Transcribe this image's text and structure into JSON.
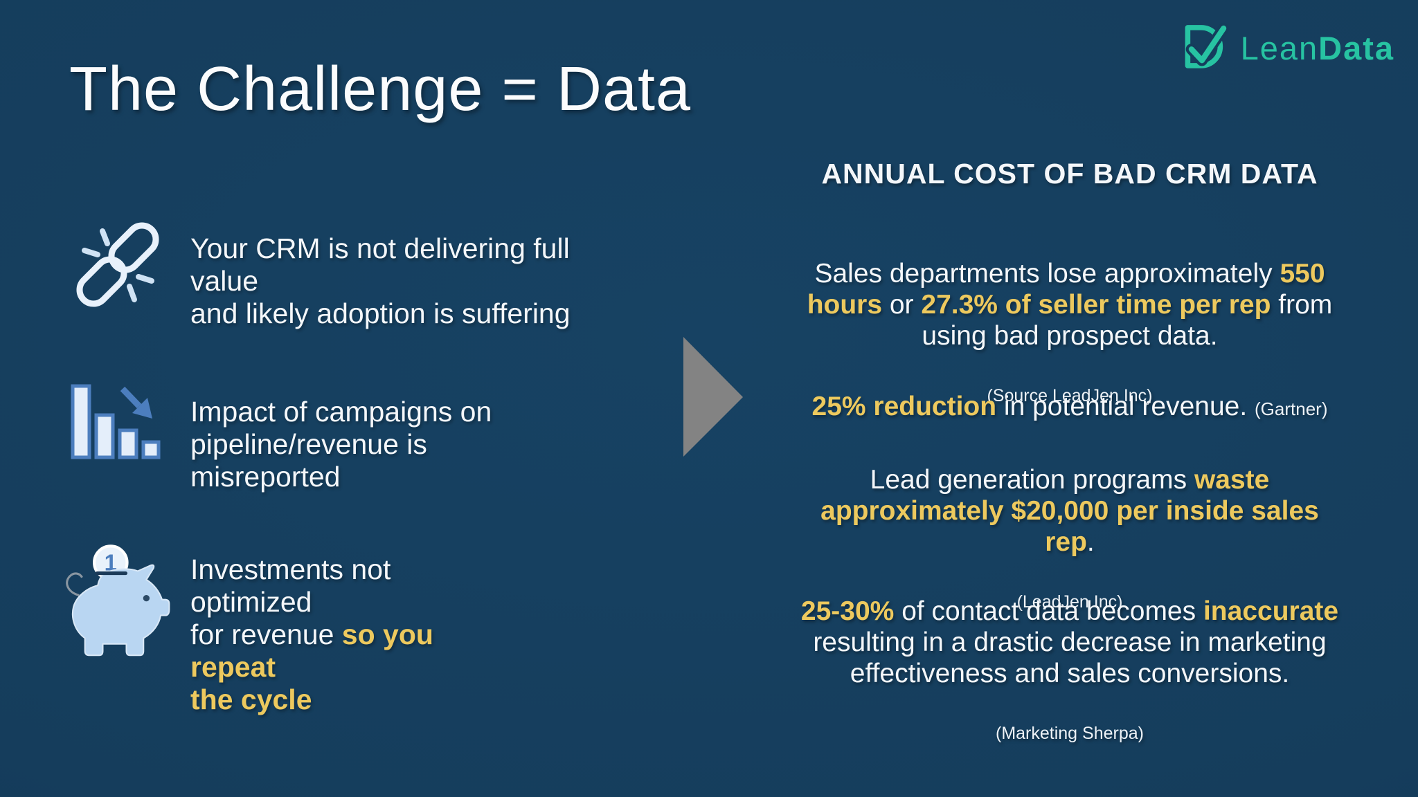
{
  "title": "The Challenge = Data",
  "logo": {
    "lean": "Lean",
    "data": "Data",
    "mark": "leandata-check-d-mark"
  },
  "left_items": [
    {
      "icon": "broken-link-icon",
      "segments": [
        {
          "text": "Your CRM is not delivering full value\nand likely adoption is suffering",
          "style": "normal"
        }
      ]
    },
    {
      "icon": "declining-bar-chart-icon",
      "segments": [
        {
          "text": "Impact of campaigns on\npipeline/revenue is misreported",
          "style": "normal"
        }
      ]
    },
    {
      "icon": "piggy-bank-icon",
      "segments": [
        {
          "text": "Investments not optimized\nfor revenue ",
          "style": "normal"
        },
        {
          "text": "so you repeat\nthe cycle",
          "style": "highlight"
        }
      ]
    }
  ],
  "arrow": {
    "shape": "right-pointing-triangle",
    "color": "#838383"
  },
  "right_panel": {
    "heading": "ANNUAL COST OF BAD CRM DATA",
    "stats": [
      {
        "segments": [
          {
            "text": "Sales departments lose approximately ",
            "style": "normal"
          },
          {
            "text": "550\nhours",
            "style": "highlight"
          },
          {
            "text": " or ",
            "style": "normal"
          },
          {
            "text": "27.3% of seller time per rep",
            "style": "highlight"
          },
          {
            "text": " from\nusing bad prospect data.",
            "style": "normal"
          }
        ],
        "source": "(Source LeadJen Inc)"
      },
      {
        "segments": [
          {
            "text": "25% reduction",
            "style": "highlight"
          },
          {
            "text": " in potential revenue. ",
            "style": "normal"
          },
          {
            "text": "(Gartner)",
            "style": "small"
          }
        ],
        "source": ""
      },
      {
        "segments": [
          {
            "text": "Lead generation programs ",
            "style": "normal"
          },
          {
            "text": "waste\napproximately $20,000 per inside sales rep",
            "style": "highlight"
          },
          {
            "text": ".",
            "style": "normal"
          }
        ],
        "source": "(LeadJen Inc)"
      },
      {
        "segments": [
          {
            "text": "25-30%",
            "style": "highlight"
          },
          {
            "text": " of contact data becomes ",
            "style": "normal"
          },
          {
            "text": "inaccurate",
            "style": "highlight"
          },
          {
            "text": "\nresulting in a drastic decrease in marketing\neffectiveness and sales conversions.",
            "style": "normal"
          }
        ],
        "source": "(Marketing Sherpa)"
      }
    ]
  },
  "colors": {
    "background": "#16405E",
    "highlight_yellow": "#EDC95E",
    "text_white": "#F4F7FA",
    "logo_teal": "#27C3A2",
    "icon_blue": "#4C7EBE",
    "icon_light_blue": "#B9D6F2",
    "arrow_gray": "#838383"
  }
}
